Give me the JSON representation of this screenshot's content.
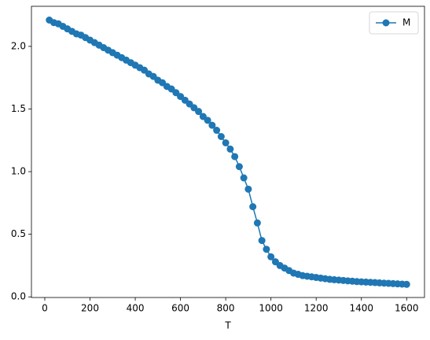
{
  "chart_data": {
    "type": "line",
    "xlabel": "T",
    "x": [
      20,
      40,
      60,
      80,
      100,
      120,
      140,
      160,
      180,
      200,
      220,
      240,
      260,
      280,
      300,
      320,
      340,
      360,
      380,
      400,
      420,
      440,
      460,
      480,
      500,
      520,
      540,
      560,
      580,
      600,
      620,
      640,
      660,
      680,
      700,
      720,
      740,
      760,
      780,
      800,
      820,
      840,
      860,
      880,
      900,
      920,
      940,
      960,
      980,
      1000,
      1020,
      1040,
      1060,
      1080,
      1100,
      1120,
      1140,
      1160,
      1180,
      1200,
      1220,
      1240,
      1260,
      1280,
      1300,
      1320,
      1340,
      1360,
      1380,
      1400,
      1420,
      1440,
      1460,
      1480,
      1500,
      1520,
      1540,
      1560,
      1580,
      1600
    ],
    "series": [
      {
        "name": "M",
        "color": "#1f77b4",
        "values": [
          2.21,
          2.19,
          2.18,
          2.16,
          2.14,
          2.12,
          2.1,
          2.09,
          2.07,
          2.05,
          2.03,
          2.01,
          1.99,
          1.97,
          1.95,
          1.93,
          1.91,
          1.89,
          1.87,
          1.85,
          1.83,
          1.81,
          1.78,
          1.76,
          1.73,
          1.71,
          1.68,
          1.66,
          1.63,
          1.6,
          1.57,
          1.54,
          1.51,
          1.48,
          1.44,
          1.41,
          1.37,
          1.33,
          1.28,
          1.23,
          1.18,
          1.12,
          1.04,
          0.95,
          0.86,
          0.72,
          0.59,
          0.45,
          0.38,
          0.32,
          0.28,
          0.25,
          0.23,
          0.21,
          0.19,
          0.18,
          0.17,
          0.165,
          0.16,
          0.155,
          0.15,
          0.145,
          0.14,
          0.137,
          0.134,
          0.131,
          0.128,
          0.125,
          0.122,
          0.12,
          0.118,
          0.116,
          0.114,
          0.112,
          0.11,
          0.108,
          0.106,
          0.104,
          0.102,
          0.1
        ]
      }
    ],
    "xlim": [
      -59,
      1679
    ],
    "xticks": [
      0,
      200,
      400,
      600,
      800,
      1000,
      1200,
      1400,
      1600
    ],
    "ylim": [
      -0.005,
      2.32
    ],
    "yticks": [
      {
        "value": 0,
        "label": "0.0"
      },
      0.5,
      {
        "value": 1,
        "label": "1.0"
      },
      1.5,
      {
        "value": 2,
        "label": "2.0"
      }
    ],
    "grid": false,
    "legend": "upper right"
  }
}
